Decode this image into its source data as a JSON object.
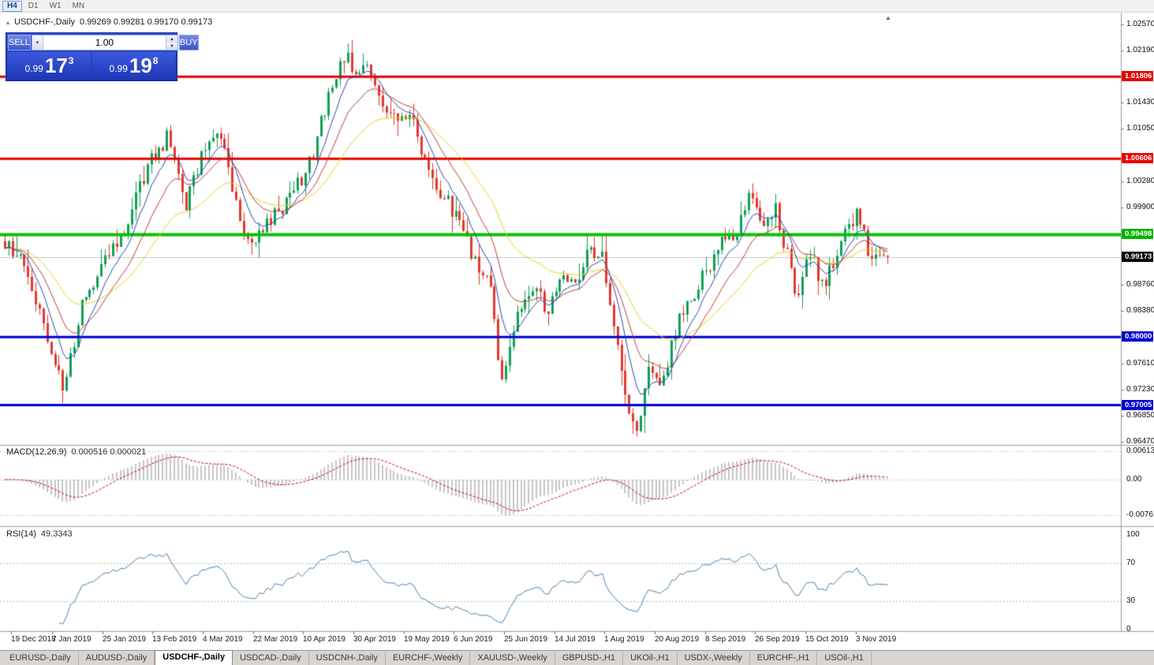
{
  "icons": {
    "collapse": "▴",
    "dropdown": "▾",
    "spin_up": "▲",
    "spin_down": "▼",
    "shift_marker": "▲"
  },
  "colors": {
    "badge_black": "#000000",
    "badge_red": "#e60000",
    "badge_green": "#00b400",
    "badge_blue": "#0000d2",
    "panel_blue": "#2a46c8"
  },
  "toolbar": {
    "timeframes": [
      {
        "label": "H4",
        "active": true
      },
      {
        "label": "D1",
        "active": false
      },
      {
        "label": "W1",
        "active": false
      },
      {
        "label": "MN",
        "active": false
      }
    ]
  },
  "chart": {
    "title": {
      "symbol": "USDCHF-,Daily",
      "ohlc": "0.99269 0.99281 0.99170 0.99173"
    },
    "trade_panel": {
      "sell_label": "SELL",
      "buy_label": "BUY",
      "lot_value": "1.00",
      "sell_price": {
        "prefix": "0.99",
        "big": "17",
        "sup": "3"
      },
      "buy_price": {
        "prefix": "0.99",
        "big": "19",
        "sup": "8"
      }
    },
    "price_axis": {
      "ticks": [
        "1.02570",
        "1.02190",
        "1.01430",
        "1.01050",
        "1.00280",
        "0.99900",
        "0.98760",
        "0.98380",
        "0.97610",
        "0.97230",
        "0.96850",
        "0.96470"
      ],
      "line_badges": [
        {
          "value": "1.01806",
          "color": "#e60000"
        },
        {
          "value": "1.00606",
          "color": "#e60000"
        },
        {
          "value": "0.99498",
          "color": "#00b400"
        },
        {
          "value": "0.98000",
          "color": "#0000d2"
        },
        {
          "value": "0.97005",
          "color": "#0000d2"
        }
      ],
      "current_price": {
        "value": "0.99173",
        "bg": "#000000"
      }
    },
    "date_axis": {
      "labels": [
        "19 Dec 2018",
        "7 Jan 2019",
        "25 Jan 2019",
        "13 Feb 2019",
        "4 Mar 2019",
        "22 Mar 2019",
        "10 Apr 2019",
        "30 Apr 2019",
        "19 May 2019",
        "6 Jun 2019",
        "25 Jun 2019",
        "14 Jul 2019",
        "1 Aug 2019",
        "20 Aug 2019",
        "8 Sep 2019",
        "26 Sep 2019",
        "15 Oct 2019",
        "3 Nov 2019"
      ]
    }
  },
  "indicators": {
    "macd": {
      "name": "MACD(12,26,9)",
      "values": "0.000516 0.000021",
      "axis_labels": [
        "0.00613",
        "0.00",
        "-0.00761"
      ],
      "params": {
        "fast": 12,
        "slow": 26,
        "signal": 9
      }
    },
    "rsi": {
      "name": "RSI(14)",
      "value": "49.3343",
      "axis_labels": [
        "100",
        "70",
        "30",
        "0"
      ],
      "params": {
        "period": 14
      },
      "levels": [
        70,
        30
      ]
    }
  },
  "chart_data": {
    "type": "candlestick",
    "title": "USDCHF Daily",
    "x_range": [
      "19 Dec 2018",
      "8 Nov 2019"
    ],
    "ylim": [
      0.9647,
      1.0257
    ],
    "num_candles": 230,
    "last_close": 0.99173,
    "bid_line": 0.99173,
    "price_path_keypoints": [
      [
        0.0,
        0.994
      ],
      [
        0.015,
        0.9915
      ],
      [
        0.03,
        0.988
      ],
      [
        0.048,
        0.98
      ],
      [
        0.066,
        0.9725
      ],
      [
        0.085,
        0.9835
      ],
      [
        0.105,
        0.99
      ],
      [
        0.135,
        0.995
      ],
      [
        0.165,
        1.006
      ],
      [
        0.185,
        1.0095
      ],
      [
        0.205,
        0.9995
      ],
      [
        0.225,
        1.0075
      ],
      [
        0.245,
        1.01
      ],
      [
        0.265,
        0.9975
      ],
      [
        0.278,
        0.993
      ],
      [
        0.3,
        0.9975
      ],
      [
        0.326,
        1.0005
      ],
      [
        0.35,
        1.007
      ],
      [
        0.37,
        1.017
      ],
      [
        0.385,
        1.0215
      ],
      [
        0.4,
        1.0185
      ],
      [
        0.415,
        1.0195
      ],
      [
        0.43,
        1.013
      ],
      [
        0.445,
        1.011
      ],
      [
        0.46,
        1.012
      ],
      [
        0.475,
        1.006
      ],
      [
        0.49,
        1.002
      ],
      [
        0.505,
        0.999
      ],
      [
        0.52,
        0.995
      ],
      [
        0.535,
        0.9905
      ],
      [
        0.55,
        0.987
      ],
      [
        0.564,
        0.972
      ],
      [
        0.58,
        0.983
      ],
      [
        0.6,
        0.988
      ],
      [
        0.615,
        0.983
      ],
      [
        0.63,
        0.99
      ],
      [
        0.645,
        0.987
      ],
      [
        0.66,
        0.992
      ],
      [
        0.675,
        0.993
      ],
      [
        0.69,
        0.982
      ],
      [
        0.705,
        0.97
      ],
      [
        0.718,
        0.965
      ],
      [
        0.73,
        0.976
      ],
      [
        0.742,
        0.972
      ],
      [
        0.755,
        0.978
      ],
      [
        0.77,
        0.985
      ],
      [
        0.785,
        0.987
      ],
      [
        0.8,
        0.991
      ],
      [
        0.815,
        0.994
      ],
      [
        0.83,
        0.996
      ],
      [
        0.843,
        1.001
      ],
      [
        0.858,
        0.996
      ],
      [
        0.872,
        0.999
      ],
      [
        0.885,
        0.993
      ],
      [
        0.898,
        0.986
      ],
      [
        0.912,
        0.993
      ],
      [
        0.925,
        0.987
      ],
      [
        0.938,
        0.99
      ],
      [
        0.952,
        0.996
      ],
      [
        0.965,
        0.9975
      ],
      [
        0.978,
        0.993
      ],
      [
        1.0,
        0.9917
      ]
    ],
    "candle_colors": {
      "up": "#0fa058",
      "down": "#e23a2e"
    },
    "moving_averages": [
      {
        "name": "slow",
        "period": 32,
        "color": "#e8cf1e"
      },
      {
        "name": "medium",
        "period": 15,
        "color": "#bf3b3b"
      },
      {
        "name": "fast",
        "period": 7,
        "color": "#2a49b4"
      }
    ],
    "horizontal_lines": [
      {
        "price": 1.01806,
        "color": "#e60000",
        "width": 3
      },
      {
        "price": 1.00606,
        "color": "#e60000",
        "width": 3
      },
      {
        "price": 0.99498,
        "color": "#00c400",
        "width": 4
      },
      {
        "price": 0.98,
        "color": "#0000d2",
        "width": 3
      },
      {
        "price": 0.97005,
        "color": "#0000d2",
        "width": 3
      }
    ]
  },
  "tabs": {
    "items": [
      "EURUSD-,Daily",
      "AUDUSD-,Daily",
      "USDCHF-,Daily",
      "USDCAD-,Daily",
      "USDCNH-,Daily",
      "EURCHF-,Weekly",
      "XAUUSD-,Weekly",
      "GBPUSD-,H1",
      "UKOil-,H1",
      "USDX-,Weekly",
      "EURCHF-,H1",
      "USOil-,H1"
    ],
    "active_index": 2
  }
}
